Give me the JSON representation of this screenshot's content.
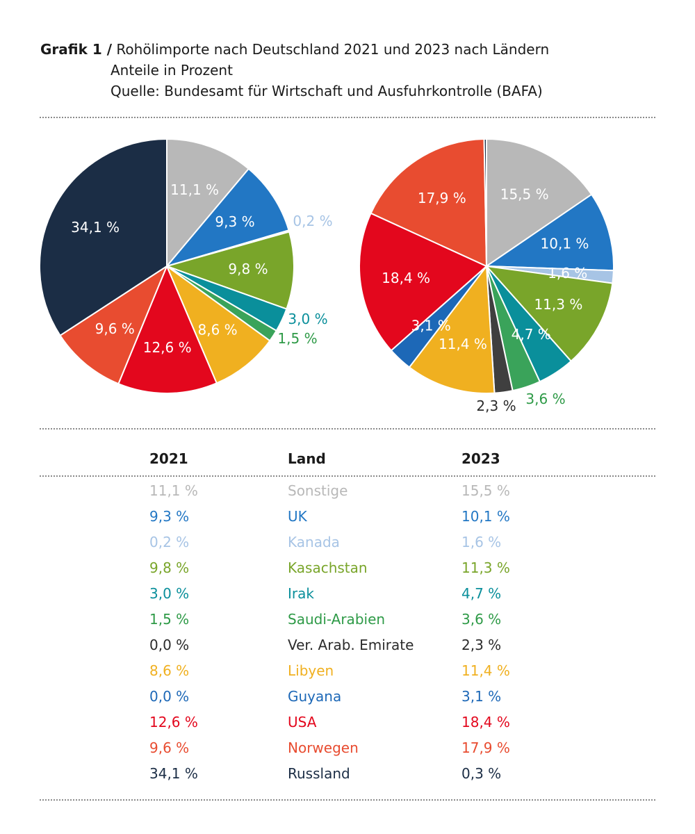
{
  "header": {
    "label": "Grafik 1 /",
    "title": "Rohölimporte nach Deutschland 2021 und 2023 nach Ländern",
    "subtitle": "Anteile in Prozent",
    "source": "Quelle: Bundesamt für Wirtschaft und Ausfuhrkontrolle (BAFA)"
  },
  "chart_data": {
    "type": "pie",
    "title": "Rohölimporte nach Deutschland 2021 und 2023 nach Ländern",
    "categories": [
      "Sonstige",
      "UK",
      "Kanada",
      "Kasachstan",
      "Irak",
      "Saudi-Arabien",
      "Ver. Arab. Emirate",
      "Libyen",
      "Guyana",
      "USA",
      "Norwegen",
      "Russland"
    ],
    "colors": [
      "#b8b8b8",
      "#2277c4",
      "#a7c4e5",
      "#79a52a",
      "#0a8f9b",
      "#3aa35a",
      "#3f3f3f",
      "#f0b020",
      "#1d68b7",
      "#e3071d",
      "#e84c30",
      "#1b2d45"
    ],
    "series": [
      {
        "name": "2021",
        "values": [
          11.1,
          9.3,
          0.2,
          9.8,
          3.0,
          1.5,
          0.0,
          8.6,
          0.0,
          12.6,
          9.6,
          34.1
        ],
        "labels": [
          "11,1 %",
          "9,3 %",
          "0,2 %",
          "9,8 %",
          "3,0 %",
          "1,5 %",
          "0,0 %",
          "8,6 %",
          "0,0 %",
          "12,6 %",
          "9,6 %",
          "34,1 %"
        ]
      },
      {
        "name": "2023",
        "values": [
          15.5,
          10.1,
          1.6,
          11.3,
          4.7,
          3.6,
          2.3,
          11.4,
          3.1,
          18.4,
          17.9,
          0.3
        ],
        "labels": [
          "15,5 %",
          "10,1 %",
          "1,6 %",
          "11,3 %",
          "4,7 %",
          "3,6 %",
          "2,3 %",
          "11,4 %",
          "3,1 %",
          "18,4 %",
          "17,9 %",
          "0,3 %"
        ]
      }
    ]
  },
  "table": {
    "headers": [
      "2021",
      "Land",
      "2023"
    ],
    "rows": [
      {
        "v2021": "11,1 %",
        "land": "Sonstige",
        "v2023": "15,5 %",
        "color": "#b8b8b8"
      },
      {
        "v2021": "9,3 %",
        "land": "UK",
        "v2023": "10,1 %",
        "color": "#2277c4"
      },
      {
        "v2021": "0,2 %",
        "land": "Kanada",
        "v2023": "1,6 %",
        "color": "#a7c4e5"
      },
      {
        "v2021": "9,8 %",
        "land": "Kasachstan",
        "v2023": "11,3 %",
        "color": "#79a52a"
      },
      {
        "v2021": "3,0 %",
        "land": "Irak",
        "v2023": "4,7 %",
        "color": "#0a8f9b"
      },
      {
        "v2021": "1,5 %",
        "land": "Saudi-Arabien",
        "v2023": "3,6 %",
        "color": "#2e9a47"
      },
      {
        "v2021": "0,0 %",
        "land": "Ver. Arab. Emirate",
        "v2023": "2,3 %",
        "color": "#2b2b2b"
      },
      {
        "v2021": "8,6 %",
        "land": "Libyen",
        "v2023": "11,4 %",
        "color": "#f0b020"
      },
      {
        "v2021": "0,0 %",
        "land": "Guyana",
        "v2023": "3,1 %",
        "color": "#1d68b7"
      },
      {
        "v2021": "12,6 %",
        "land": "USA",
        "v2023": "18,4 %",
        "color": "#e3071d"
      },
      {
        "v2021": "9,6 %",
        "land": "Norwegen",
        "v2023": "17,9 %",
        "color": "#e84c30"
      },
      {
        "v2021": "34,1 %",
        "land": "Russland",
        "v2023": "0,3 %",
        "color": "#1b2d45"
      }
    ]
  }
}
